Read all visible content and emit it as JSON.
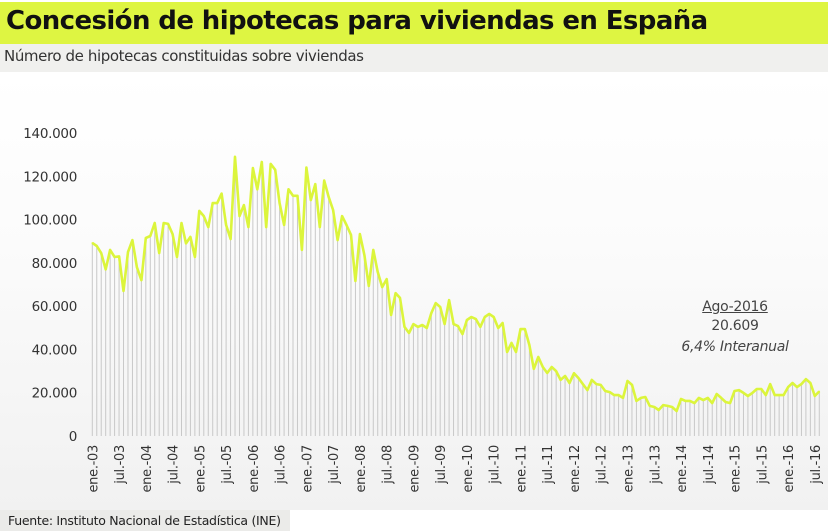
{
  "header": {
    "title": "Concesión de hipotecas para viviendas en España",
    "subtitle": "Número de hipotecas constituidas sobre viviendas"
  },
  "footer": {
    "source": "Fuente: Instituto Nacional de Estadística (INE)"
  },
  "colors": {
    "title_bar": "#def542",
    "line": "#dcf53c",
    "droplines": "#c8c8c8"
  },
  "annotation": {
    "period": "Ago-2016",
    "value": "20.609",
    "change": "6,4% Interanual"
  },
  "chart_data": {
    "type": "line",
    "title": "Concesión de hipotecas para viviendas en España",
    "subtitle": "Número de hipotecas constituidas sobre viviendas",
    "xlabel": "",
    "ylabel": "",
    "frequency": "monthly",
    "period": "ene.-03 to ago.-16",
    "ylim": [
      0,
      140000
    ],
    "y_ticks": [
      0,
      20000,
      40000,
      60000,
      80000,
      100000,
      120000,
      140000
    ],
    "y_tick_labels": [
      "0",
      "20.000",
      "40.000",
      "60.000",
      "80.000",
      "100.000",
      "120.000",
      "140.000"
    ],
    "x_tick_labels": [
      "ene.-03",
      "jul.-03",
      "ene.-04",
      "jul.-04",
      "ene.-05",
      "jul.-05",
      "ene.-06",
      "jul.-06",
      "ene.-07",
      "jul.-07",
      "ene.-08",
      "jul.-08",
      "ene.-09",
      "jul.-09",
      "ene.-10",
      "jul.-10",
      "ene.-11",
      "jul.-11",
      "ene.-12",
      "jul.-12",
      "ene.-13",
      "jul.-13",
      "ene.-14",
      "jul.-14",
      "ene.-15",
      "jul.-15",
      "ene.-16",
      "jul.-16"
    ],
    "grid": false,
    "legend": "none",
    "values": [
      89200,
      87800,
      84500,
      77000,
      86000,
      82700,
      83000,
      67000,
      85000,
      90500,
      78000,
      72000,
      91500,
      92400,
      98400,
      84500,
      98400,
      98000,
      93300,
      82700,
      98400,
      89000,
      92000,
      82700,
      104000,
      101600,
      96500,
      107600,
      107600,
      112000,
      97500,
      91000,
      129000,
      101600,
      106700,
      96500,
      123800,
      114000,
      126600,
      96500,
      125700,
      123000,
      107600,
      97500,
      114000,
      111000,
      111000,
      86000,
      124000,
      109000,
      116400,
      96500,
      118000,
      110400,
      104400,
      90500,
      101600,
      97500,
      92900,
      71600,
      93300,
      83600,
      69300,
      86000,
      75800,
      68800,
      72500,
      55900,
      66000,
      63800,
      50400,
      47600,
      51700,
      50400,
      51300,
      49900,
      56800,
      61400,
      59600,
      51700,
      62800,
      51700,
      50800,
      47100,
      53600,
      55000,
      54000,
      50400,
      55000,
      56400,
      55000,
      49900,
      52200,
      38800,
      43000,
      38800,
      49400,
      49400,
      42000,
      31000,
      36500,
      31900,
      29100,
      31900,
      30000,
      25900,
      27700,
      24500,
      29000,
      26800,
      24000,
      21200,
      25900,
      24000,
      23600,
      20800,
      20300,
      18900,
      18900,
      17600,
      25400,
      23600,
      16200,
      17600,
      18000,
      13900,
      13400,
      12000,
      14300,
      13900,
      13400,
      11500,
      17100,
      16200,
      16200,
      15200,
      17600,
      16600,
      17600,
      15200,
      19400,
      17600,
      15700,
      15200,
      20800,
      21200,
      19900,
      18500,
      19900,
      21700,
      21700,
      18900,
      24000,
      18900,
      18900,
      18900,
      22600,
      24500,
      22600,
      24000,
      26300,
      24500,
      18500,
      20609
    ]
  }
}
